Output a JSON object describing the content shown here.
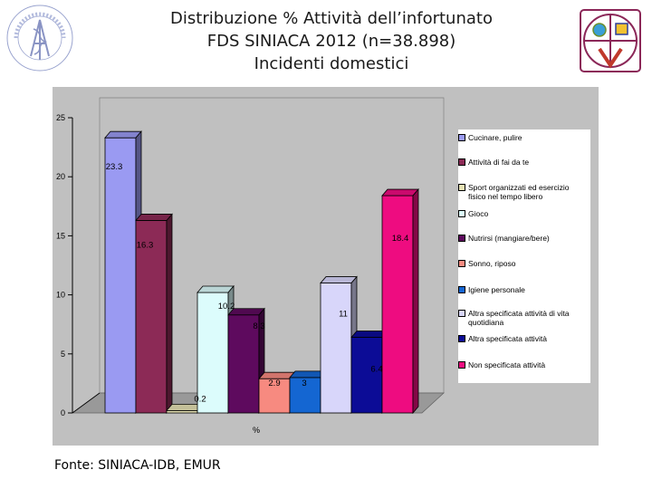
{
  "header": {
    "title_line1": "Distribuzione % Attività dell’infortunato",
    "title_line2": "FDS SINIACA 2012 (n=38.898)",
    "title_line3": "Incidenti domestici"
  },
  "logos": {
    "left_seal_text": "ISTITUTO SUPERIORE DI SANITÀ",
    "right_badge_mark": "V"
  },
  "footer": {
    "source": "Fonte: SINIACA-IDB, EMUR"
  },
  "chart_data": {
    "type": "bar",
    "style": "3d-clustered-column",
    "title": "",
    "xlabel": "%",
    "ylabel": "",
    "ylim": [
      0,
      25
    ],
    "y_ticks": [
      0,
      5,
      10,
      15,
      20,
      25
    ],
    "grid": false,
    "legend_position": "right",
    "categories": [
      "%"
    ],
    "series": [
      {
        "name": "Cucinare, pulire",
        "value": 23.3,
        "label": "23.3",
        "color": "#9a9af2"
      },
      {
        "name": "Attività di fai da te",
        "value": 16.3,
        "label": "16.3",
        "color": "#8c2a56"
      },
      {
        "name": "Sport organizzati ed esercizio fisico nel tempo libero",
        "value": 0.2,
        "label": "0.2",
        "color": "#e6e2b4"
      },
      {
        "name": "Gioco",
        "value": 10.2,
        "label": "10.2",
        "color": "#dcfcfc"
      },
      {
        "name": "Nutrirsi (mangiare/bere)",
        "value": 8.3,
        "label": "8.3",
        "color": "#5e0a5e"
      },
      {
        "name": "Sonno, riposo",
        "value": 2.9,
        "label": "2.9",
        "color": "#f78a80"
      },
      {
        "name": "Igiene personale",
        "value": 3,
        "label": "3",
        "color": "#1466d2"
      },
      {
        "name": "Altra specificata attività di vita quotidiana",
        "value": 11,
        "label": "11",
        "color": "#d8d6fa"
      },
      {
        "name": "Altra specificata attività",
        "value": 6.4,
        "label": "6.4",
        "color": "#0c0c96"
      },
      {
        "name": "Non specificata attività",
        "value": 18.4,
        "label": "18.4",
        "color": "#ee0c80"
      }
    ]
  }
}
